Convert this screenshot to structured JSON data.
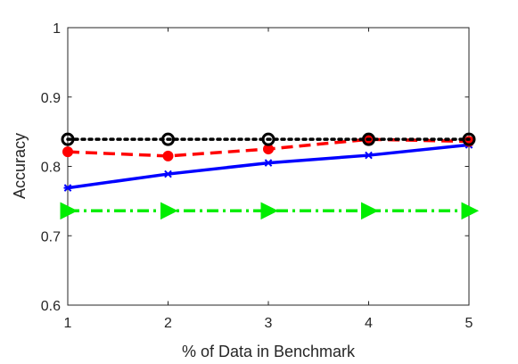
{
  "chart_data": {
    "type": "line",
    "title": "",
    "xlabel": "% of Data in Benchmark",
    "ylabel": "Accuracy",
    "xlim": [
      1,
      5
    ],
    "ylim": [
      0.6,
      1
    ],
    "xticks": [
      1,
      2,
      3,
      4,
      5
    ],
    "yticks": [
      0.6,
      0.7,
      0.8,
      0.9,
      1
    ],
    "xtick_labels": [
      "1",
      "2",
      "3",
      "4",
      "5"
    ],
    "ytick_labels": [
      "0.6",
      "0.7",
      "0.8",
      "0.9",
      "1"
    ],
    "grid": false,
    "legend": "none",
    "x": [
      1,
      2,
      3,
      4,
      5
    ],
    "series": [
      {
        "values": [
          0.769,
          0.789,
          0.805,
          0.816,
          0.831
        ],
        "color": "#0000ff",
        "line_style": "solid",
        "marker": "asterisk"
      },
      {
        "values": [
          0.821,
          0.815,
          0.825,
          0.839,
          0.836
        ],
        "color": "#ff0000",
        "line_style": "dashed",
        "marker": "filled-circle"
      },
      {
        "values": [
          0.839,
          0.839,
          0.839,
          0.839,
          0.839
        ],
        "color": "#000000",
        "line_style": "dotted",
        "marker": "open-circle"
      },
      {
        "values": [
          0.736,
          0.736,
          0.736,
          0.736,
          0.736
        ],
        "color": "#00ee00",
        "line_style": "dash-dot",
        "marker": "triangle-right"
      }
    ]
  }
}
